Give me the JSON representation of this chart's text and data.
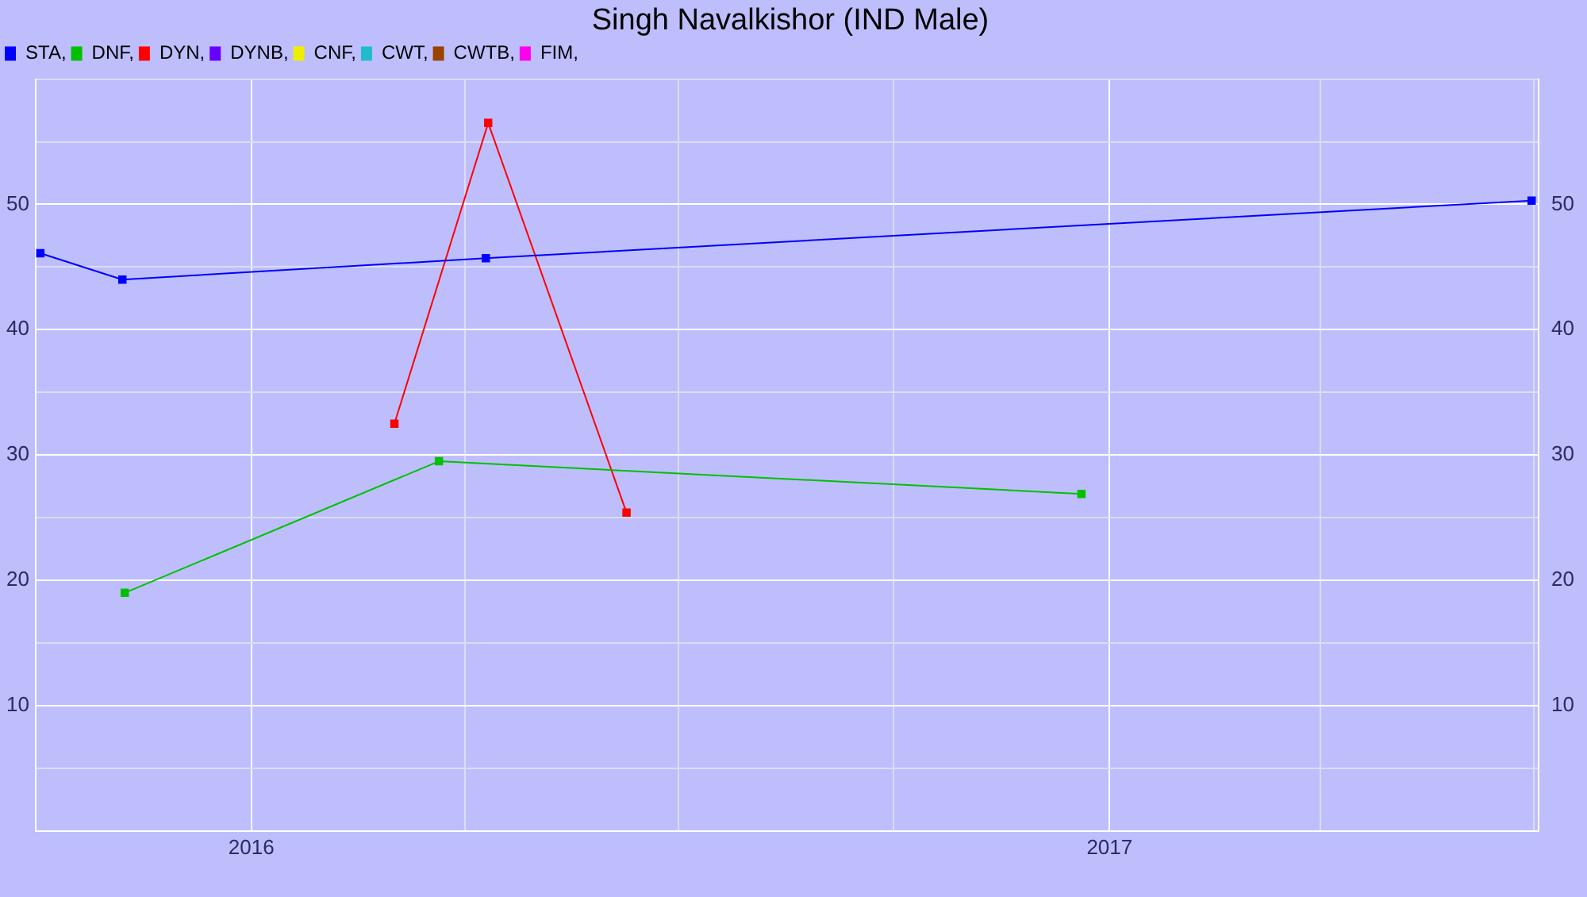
{
  "chart_data": {
    "type": "line",
    "title": "Singh Navalkishor (IND Male)",
    "legend": "top left",
    "grid": true,
    "marker": "square",
    "line_style": "solid",
    "xlim": [
      "2015-10-01",
      "2017-07-03"
    ],
    "xticks": [
      {
        "value": "2015-10-01",
        "label": null
      },
      {
        "value": "2016",
        "label": "2016"
      },
      {
        "value": "2016-04-01",
        "label": null
      },
      {
        "value": "2016-07-01",
        "label": null
      },
      {
        "value": "2016-10-01",
        "label": null
      },
      {
        "value": "2017",
        "label": "2017"
      },
      {
        "value": "2017-04-01",
        "label": null
      },
      {
        "value": "2017-07-01",
        "label": null
      }
    ],
    "ylim": [
      0,
      60
    ],
    "yticks": [
      {
        "value": 5,
        "label": null
      },
      10,
      {
        "value": 15,
        "label": null
      },
      20,
      {
        "value": 25,
        "label": null
      },
      30,
      {
        "value": 35,
        "label": null
      },
      40,
      {
        "value": 45,
        "label": null
      },
      50,
      {
        "value": 55,
        "label": null
      },
      {
        "value": 60,
        "label": null
      }
    ],
    "y2lim": [
      0,
      60
    ],
    "y2ticks": [
      10,
      20,
      30,
      40,
      50
    ],
    "series": [
      {
        "name": "STA,",
        "color": "#0000ff",
        "x": [
          "2015-10-03",
          "2015-11-07",
          "2016-04-10",
          "2017-06-30"
        ],
        "values": [
          46.1,
          44.0,
          45.7,
          50.3
        ]
      },
      {
        "name": "DNF,",
        "color": "#00c000",
        "x": [
          "2015-11-08",
          "2016-03-21",
          "2016-12-20"
        ],
        "values": [
          19.0,
          29.5,
          26.9
        ]
      },
      {
        "name": "DYN,",
        "color": "#ff0000",
        "x": [
          "2016-03-02",
          "2016-04-11",
          "2016-06-09"
        ],
        "values": [
          32.5,
          56.5,
          25.4
        ]
      },
      {
        "name": "DYNB,",
        "color": "#6600ff"
      },
      {
        "name": "CNF,",
        "color": "#eeee00"
      },
      {
        "name": "CWT,",
        "color": "#22bbcc"
      },
      {
        "name": "CWTB,",
        "color": "#994400"
      },
      {
        "name": "FIM,",
        "color": "#ff00ee"
      }
    ]
  }
}
